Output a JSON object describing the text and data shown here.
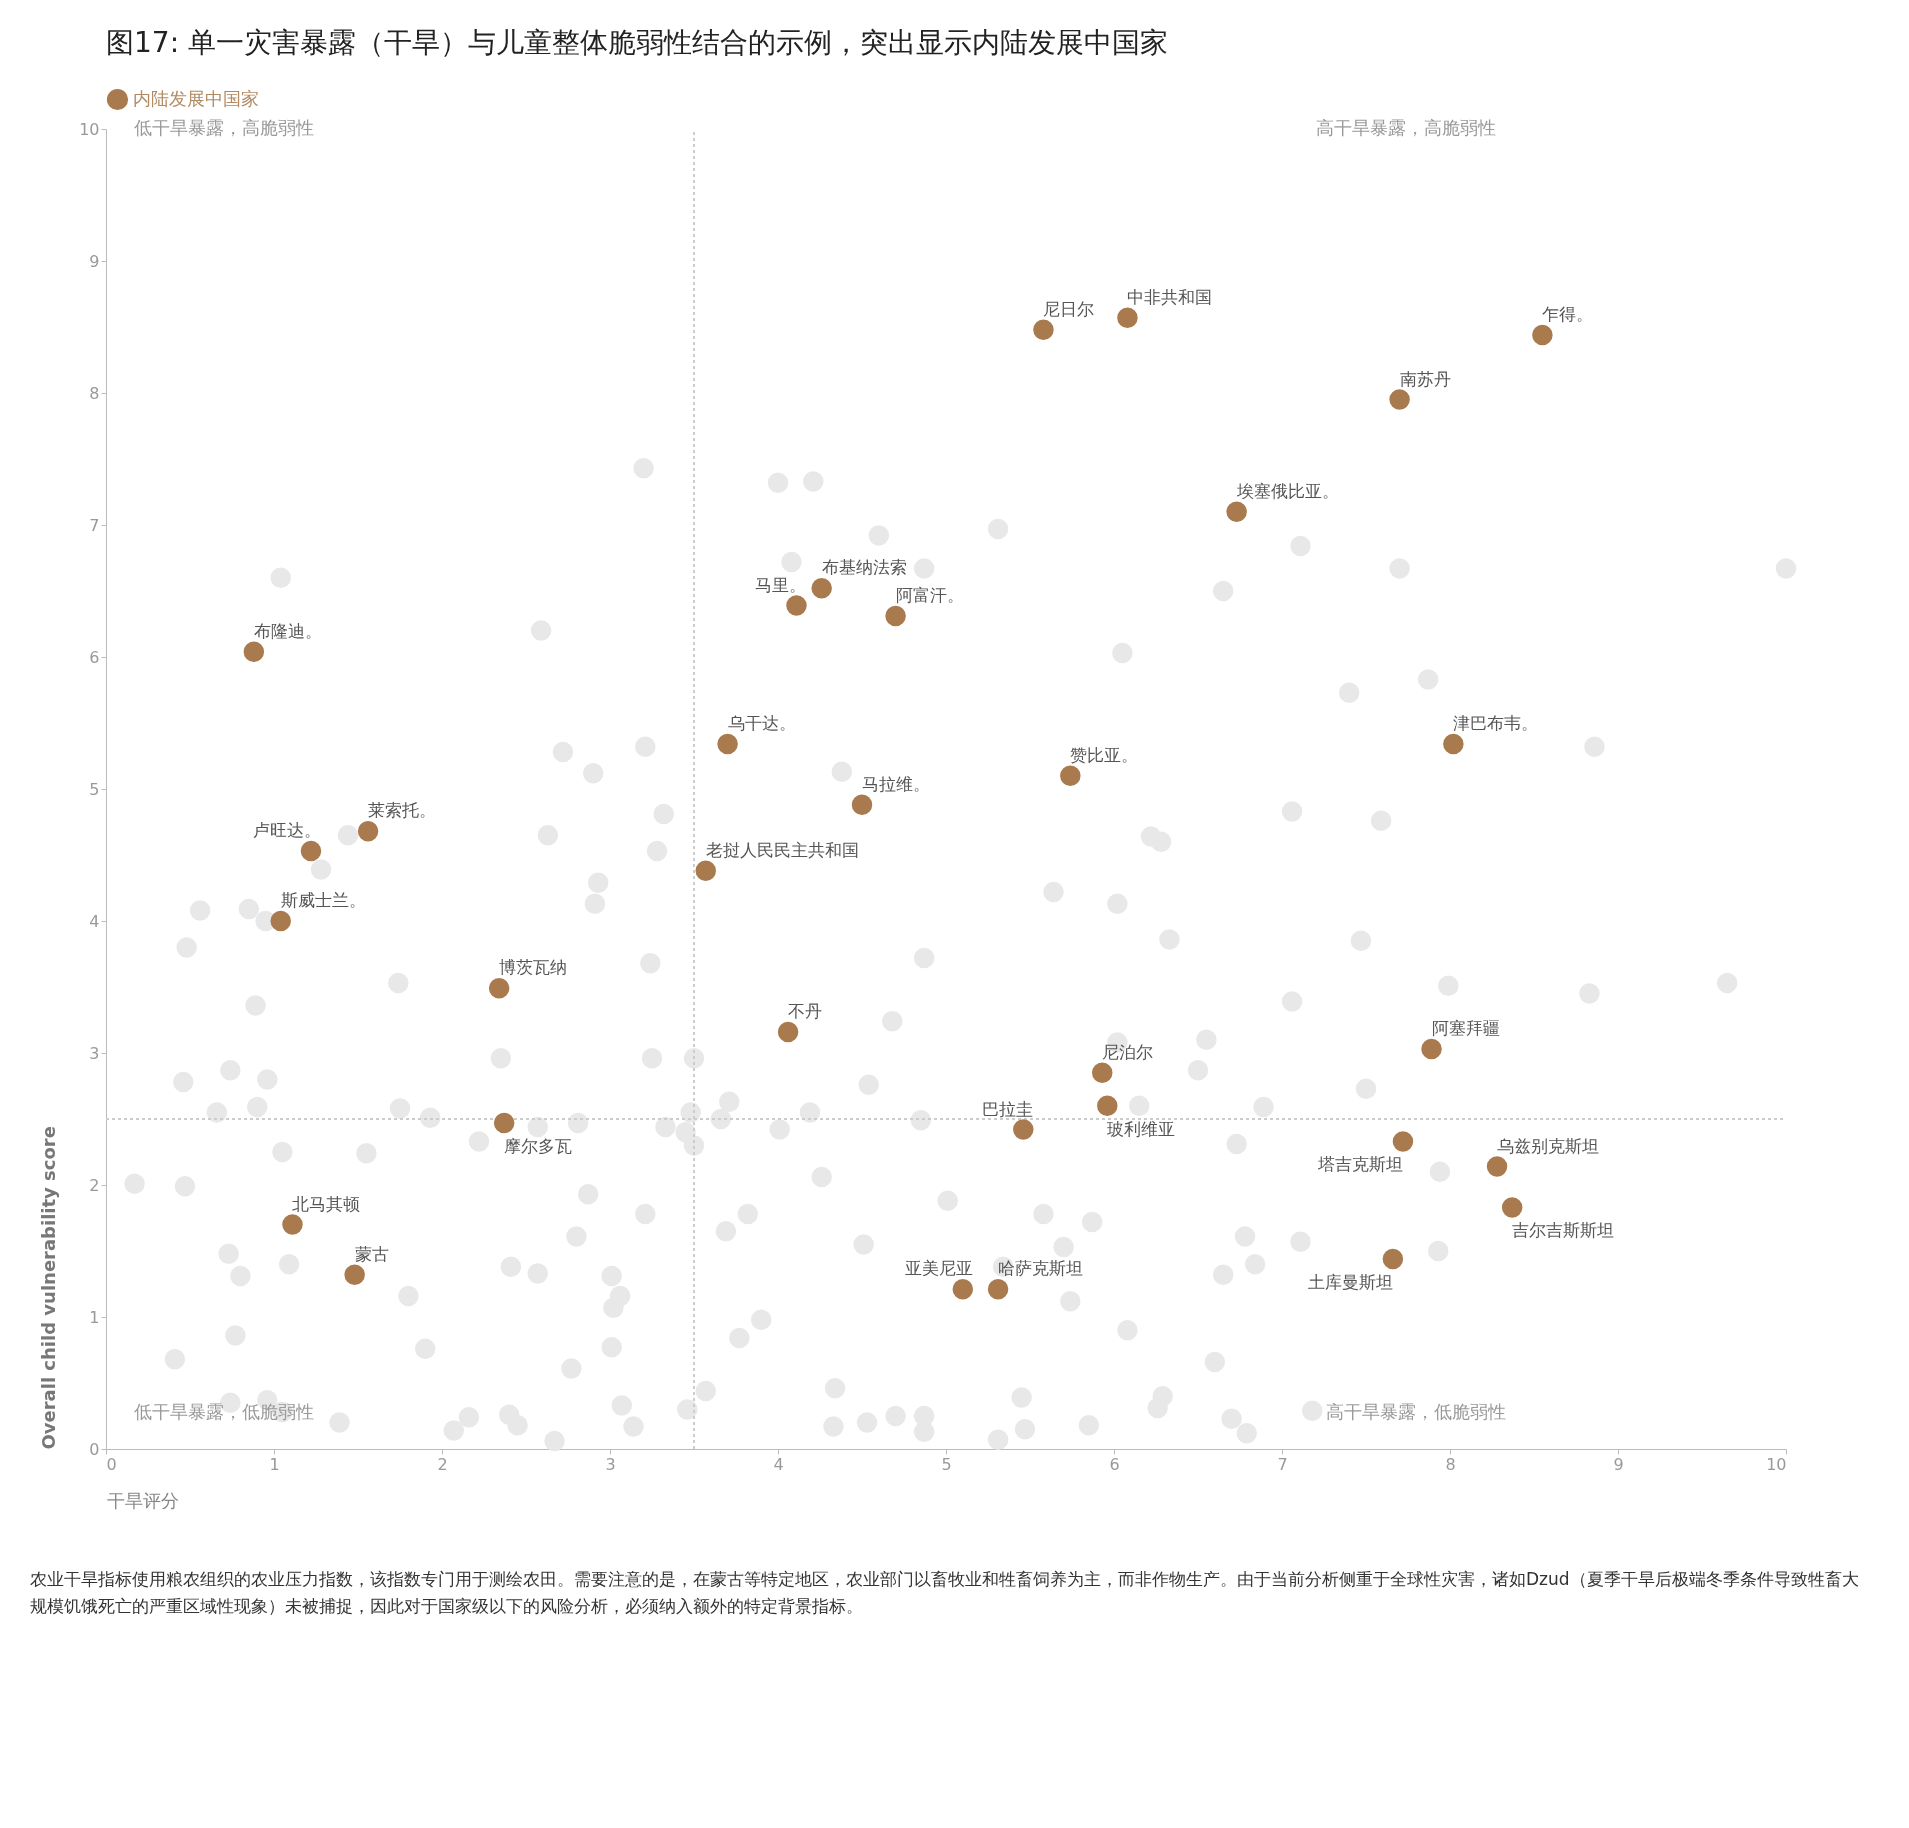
{
  "chart_data": {
    "type": "scatter",
    "title": "图17: 单一灾害暴露（干旱）与儿童整体脆弱性结合的示例，突出显示内陆发展中国家",
    "xlabel": "干旱评分",
    "ylabel": "Overall child vulnerability score",
    "xlim": [
      0,
      10
    ],
    "ylim": [
      0,
      10
    ],
    "xticks": [
      0,
      1,
      2,
      3,
      4,
      5,
      6,
      7,
      8,
      9,
      10
    ],
    "yticks": [
      0,
      1,
      2,
      3,
      4,
      5,
      6,
      7,
      8,
      9,
      10
    ],
    "legend": "top left",
    "marker": "circle",
    "series": [
      {
        "color": "#e8e8e8",
        "x": [
          3.2,
          4.0,
          4.21,
          4.08,
          4.6,
          4.87,
          5.31,
          1.04,
          2.59,
          7.11,
          7.7,
          10.0,
          6.65,
          6.05,
          7.4,
          7.87,
          8.86,
          2.72,
          3.21,
          2.9,
          4.38,
          3.32,
          2.63,
          3.28,
          1.44,
          1.28,
          2.93,
          2.91,
          0.56,
          0.85,
          0.95,
          0.48,
          7.06,
          7.59,
          6.22,
          6.28,
          5.64,
          6.02,
          6.33,
          7.47,
          4.87,
          3.24,
          1.74,
          0.89,
          7.06,
          7.99,
          8.83,
          9.65,
          4.68,
          6.02,
          6.55,
          2.35,
          3.25,
          3.5,
          0.46,
          0.74,
          0.96,
          0.66,
          0.9,
          1.75,
          1.93,
          3.71,
          3.48,
          3.66,
          4.19,
          4.54,
          4.85,
          4.01,
          3.33,
          3.45,
          3.5,
          2.57,
          2.81,
          2.22,
          6.15,
          6.5,
          6.89,
          6.73,
          7.5,
          1.05,
          1.55,
          0.17,
          0.47,
          2.87,
          4.26,
          3.21,
          5.01,
          7.94,
          3.82,
          3.69,
          2.8,
          5.58,
          5.87,
          4.51,
          6.78,
          7.11,
          7.93,
          0.73,
          1.09,
          0.8,
          2.41,
          2.57,
          3.01,
          5.7,
          5.34,
          6.84,
          6.65,
          1.8,
          3.06,
          3.02,
          5.74,
          3.9,
          0.77,
          3.77,
          6.08,
          1.9,
          3.01,
          0.41,
          2.77,
          6.6,
          3.57,
          4.34,
          3.07,
          5.45,
          6.29,
          0.74,
          0.96,
          1.05,
          1.39,
          2.16,
          2.4,
          2.45,
          2.07,
          2.67,
          3.14,
          3.46,
          4.33,
          4.53,
          4.7,
          4.87,
          4.87,
          5.47,
          5.31,
          5.85,
          6.26,
          6.7,
          6.79,
          7.18
        ],
        "values": [
          7.43,
          7.32,
          7.33,
          6.72,
          6.92,
          6.67,
          6.97,
          6.6,
          6.2,
          6.84,
          6.67,
          6.67,
          6.5,
          6.03,
          5.73,
          5.83,
          5.32,
          5.28,
          5.32,
          5.12,
          5.13,
          4.81,
          4.65,
          4.53,
          4.65,
          4.39,
          4.29,
          4.13,
          4.08,
          4.09,
          4.0,
          3.8,
          4.83,
          4.76,
          4.64,
          4.6,
          4.22,
          4.13,
          3.86,
          3.85,
          3.72,
          3.68,
          3.53,
          3.36,
          3.39,
          3.51,
          3.45,
          3.53,
          3.24,
          3.08,
          3.1,
          2.96,
          2.96,
          2.96,
          2.78,
          2.87,
          2.8,
          2.55,
          2.59,
          2.58,
          2.51,
          2.63,
          2.55,
          2.5,
          2.55,
          2.76,
          2.49,
          2.42,
          2.44,
          2.4,
          2.3,
          2.44,
          2.47,
          2.33,
          2.6,
          2.87,
          2.59,
          2.31,
          2.73,
          2.25,
          2.24,
          2.01,
          1.99,
          1.93,
          2.06,
          1.78,
          1.88,
          2.1,
          1.78,
          1.65,
          1.61,
          1.78,
          1.72,
          1.55,
          1.61,
          1.57,
          1.5,
          1.48,
          1.4,
          1.31,
          1.38,
          1.33,
          1.31,
          1.53,
          1.38,
          1.4,
          1.32,
          1.16,
          1.16,
          1.07,
          1.12,
          0.98,
          0.86,
          0.84,
          0.9,
          0.76,
          0.77,
          0.68,
          0.61,
          0.66,
          0.44,
          0.46,
          0.33,
          0.39,
          0.4,
          0.35,
          0.37,
          0.28,
          0.2,
          0.24,
          0.26,
          0.18,
          0.14,
          0.06,
          0.17,
          0.3,
          0.17,
          0.2,
          0.25,
          0.25,
          0.13,
          0.15,
          0.07,
          0.18,
          0.31,
          0.23,
          0.12,
          0.29
        ]
      },
      {
        "name": "内陆发展中国家",
        "color": "#a87a4e",
        "x": [
          5.58,
          6.08,
          8.55,
          7.7,
          6.73,
          4.26,
          4.11,
          4.7,
          0.88,
          3.7,
          8.02,
          5.74,
          4.5,
          1.56,
          1.22,
          3.57,
          1.04,
          2.34,
          4.06,
          7.89,
          5.93,
          5.96,
          5.46,
          2.37,
          7.72,
          8.28,
          8.37,
          1.11,
          1.48,
          7.66,
          5.1,
          5.31
        ],
        "values": [
          8.48,
          8.57,
          8.44,
          7.95,
          7.1,
          6.52,
          6.39,
          6.31,
          6.04,
          5.34,
          5.34,
          5.1,
          4.88,
          4.68,
          4.53,
          4.38,
          4.0,
          3.49,
          3.16,
          3.03,
          2.85,
          2.6,
          2.42,
          2.47,
          2.33,
          2.14,
          1.83,
          1.7,
          1.32,
          1.44,
          1.21,
          1.21
        ]
      }
    ],
    "ref_lines": [
      {
        "axis": "x",
        "value": 3.5,
        "color": "#cccccc",
        "line_style": "dotted"
      },
      {
        "axis": "y",
        "value": 2.5,
        "color": "#cccccc",
        "line_style": "dotted"
      }
    ],
    "annotations": [
      "低干旱暴露，高脆弱性",
      "高干旱暴露，高脆弱性",
      "低干旱暴露，低脆弱性",
      "高干旱暴露，低脆弱性",
      "农业干旱指标使用粮农组织的农业压力指数，该指数专门用于测绘农田。需要注意的是，在蒙古等特定地区，农业部门以畜牧业和牲畜饲养为主，而非作物生产。由于当前分析侧重于全球性灾害，诸如Dzud（夏季干旱后极端冬季条件导致牲畜大规模饥饿死亡的严重区域性现象）未被捕捉，因此对于国家级以下的风险分析，必须纳入额外的特定背景指标。",
      {
        "text": "尼日尔",
        "x": 5.58,
        "y": 8.48
      },
      {
        "text": "中非共和国",
        "x": 6.08,
        "y": 8.57
      },
      {
        "text": "乍得。",
        "x": 8.55,
        "y": 8.44
      },
      {
        "text": "南苏丹",
        "x": 7.7,
        "y": 7.95
      },
      {
        "text": "埃塞俄比亚。",
        "x": 6.73,
        "y": 7.1
      },
      {
        "text": "布基纳法索",
        "x": 4.26,
        "y": 6.52
      },
      {
        "text": "马里。",
        "x": 4.11,
        "y": 6.39
      },
      {
        "text": "阿富汗。",
        "x": 4.7,
        "y": 6.31
      },
      {
        "text": "布隆迪。",
        "x": 0.88,
        "y": 6.04
      },
      {
        "text": "乌干达。",
        "x": 3.7,
        "y": 5.34
      },
      {
        "text": "津巴布韦。",
        "x": 8.02,
        "y": 5.34
      },
      {
        "text": "赞比亚。",
        "x": 5.74,
        "y": 5.1
      },
      {
        "text": "马拉维。",
        "x": 4.5,
        "y": 4.88
      },
      {
        "text": "莱索托。",
        "x": 1.56,
        "y": 4.68
      },
      {
        "text": "卢旺达。",
        "x": 1.22,
        "y": 4.53
      },
      {
        "text": "老挝人民民主共和国",
        "x": 3.57,
        "y": 4.38
      },
      {
        "text": "斯威士兰。",
        "x": 1.04,
        "y": 4.0
      },
      {
        "text": "博茨瓦纳",
        "x": 2.34,
        "y": 3.49
      },
      {
        "text": "不丹",
        "x": 4.06,
        "y": 3.16
      },
      {
        "text": "阿塞拜疆",
        "x": 7.89,
        "y": 3.03
      },
      {
        "text": "尼泊尔",
        "x": 5.93,
        "y": 2.85
      },
      {
        "text": "玻利维亚",
        "x": 5.96,
        "y": 2.6
      },
      {
        "text": "巴拉圭",
        "x": 5.46,
        "y": 2.42
      },
      {
        "text": "摩尔多瓦",
        "x": 2.37,
        "y": 2.47
      },
      {
        "text": "塔吉克斯坦",
        "x": 7.72,
        "y": 2.33
      },
      {
        "text": "乌兹别克斯坦",
        "x": 8.28,
        "y": 2.14
      },
      {
        "text": "吉尔吉斯斯坦",
        "x": 8.37,
        "y": 1.83
      },
      {
        "text": "北马其顿",
        "x": 1.11,
        "y": 1.7
      },
      {
        "text": "蒙古",
        "x": 1.48,
        "y": 1.32
      },
      {
        "text": "土库曼斯坦",
        "x": 7.66,
        "y": 1.44
      },
      {
        "text": "亚美尼亚",
        "x": 5.1,
        "y": 1.21
      },
      {
        "text": "哈萨克斯坦",
        "x": 5.31,
        "y": 1.21
      }
    ]
  }
}
